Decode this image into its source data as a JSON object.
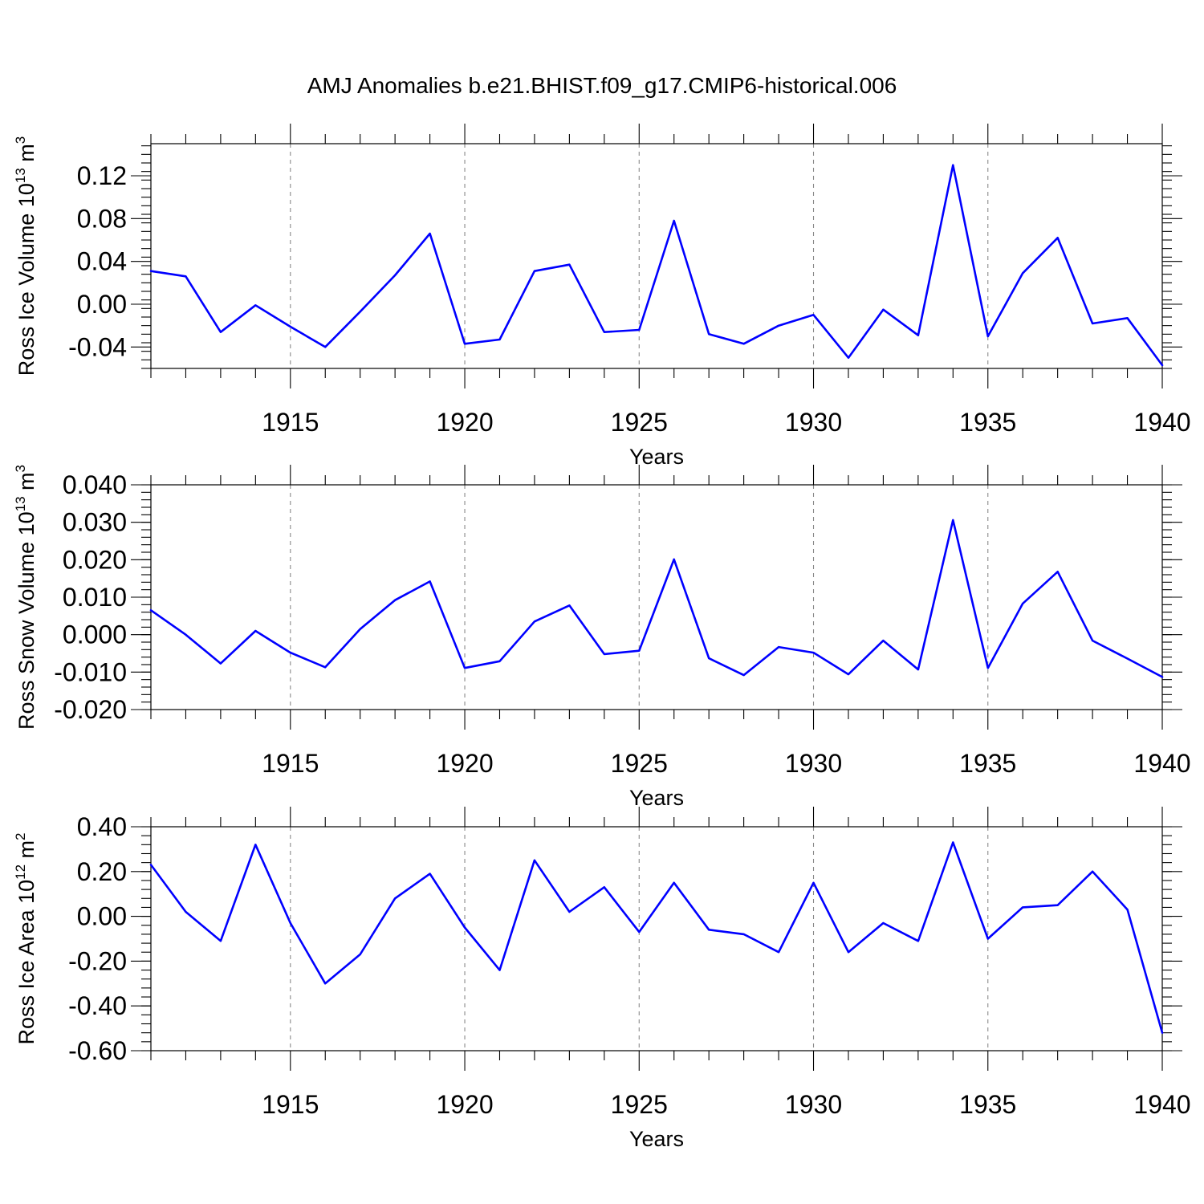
{
  "title": "AMJ Anomalies b.e21.BHIST.f09_g17.CMIP6-historical.006",
  "colors": {
    "line": "#0000ff",
    "grid": "#8a8a8a",
    "axis": "#000000"
  },
  "chart_data": [
    {
      "type": "line",
      "ylabel": {
        "main": "Ross Ice Volume 10",
        "exp": "13",
        "unit": " m",
        "unit_exp": "3"
      },
      "xlabel": "Years",
      "xlim": [
        1911,
        1940
      ],
      "ylim": [
        -0.06,
        0.15
      ],
      "xticks": [
        1915,
        1920,
        1925,
        1930,
        1935,
        1940
      ],
      "xtick_labels": [
        "1915",
        "1920",
        "1925",
        "1930",
        "1935",
        "1940"
      ],
      "yticks": [
        -0.04,
        0.0,
        0.04,
        0.08,
        0.12
      ],
      "ytick_labels": [
        "-0.04",
        "0.00",
        "0.04",
        "0.08",
        "0.12"
      ],
      "y_minor_step": 0.008,
      "grid": "vertical dashed at labeled years",
      "x": [
        1911,
        1912,
        1913,
        1914,
        1915,
        1916,
        1917,
        1918,
        1919,
        1920,
        1921,
        1922,
        1923,
        1924,
        1925,
        1926,
        1927,
        1928,
        1929,
        1930,
        1931,
        1932,
        1933,
        1934,
        1935,
        1936,
        1937,
        1938,
        1939,
        1940
      ],
      "series": [
        {
          "values": [
            0.031,
            0.026,
            -0.026,
            -0.001,
            -0.021,
            -0.04,
            -0.007,
            0.027,
            0.066,
            -0.037,
            -0.033,
            0.031,
            0.037,
            -0.026,
            -0.024,
            0.078,
            -0.028,
            -0.037,
            -0.02,
            -0.01,
            -0.05,
            -0.005,
            -0.029,
            0.13,
            -0.03,
            0.029,
            0.062,
            -0.018,
            -0.013,
            -0.057
          ]
        }
      ]
    },
    {
      "type": "line",
      "ylabel": {
        "main": "Ross Snow Volume 10",
        "exp": "13",
        "unit": " m",
        "unit_exp": "3"
      },
      "xlabel": "Years",
      "xlim": [
        1911,
        1940
      ],
      "ylim": [
        -0.02,
        0.04
      ],
      "xticks": [
        1915,
        1920,
        1925,
        1930,
        1935,
        1940
      ],
      "xtick_labels": [
        "1915",
        "1920",
        "1925",
        "1930",
        "1935",
        "1940"
      ],
      "yticks": [
        -0.02,
        -0.01,
        0.0,
        0.01,
        0.02,
        0.03,
        0.04
      ],
      "ytick_labels": [
        "-0.020",
        "-0.010",
        "0.000",
        "0.010",
        "0.020",
        "0.030",
        "0.040"
      ],
      "y_minor_step": 0.002,
      "grid": "vertical dashed at labeled years",
      "x": [
        1911,
        1912,
        1913,
        1914,
        1915,
        1916,
        1917,
        1918,
        1919,
        1920,
        1921,
        1922,
        1923,
        1924,
        1925,
        1926,
        1927,
        1928,
        1929,
        1930,
        1931,
        1932,
        1933,
        1934,
        1935,
        1936,
        1937,
        1938,
        1939,
        1940
      ],
      "series": [
        {
          "values": [
            0.0065,
            0.0,
            -0.0077,
            0.001,
            -0.0048,
            -0.0087,
            0.0015,
            0.0092,
            0.0142,
            -0.0089,
            -0.0071,
            0.0035,
            0.0078,
            -0.0052,
            -0.0043,
            0.0201,
            -0.0063,
            -0.0108,
            -0.0033,
            -0.0048,
            -0.0106,
            -0.0016,
            -0.0093,
            0.0306,
            -0.0089,
            0.0083,
            0.0168,
            -0.0016,
            -0.0064,
            -0.0113
          ]
        }
      ]
    },
    {
      "type": "line",
      "ylabel": {
        "main": "Ross Ice Area 10",
        "exp": "12",
        "unit": " m",
        "unit_exp": "2"
      },
      "xlabel": "Years",
      "xlim": [
        1911,
        1940
      ],
      "ylim": [
        -0.6,
        0.4
      ],
      "xticks": [
        1915,
        1920,
        1925,
        1930,
        1935,
        1940
      ],
      "xtick_labels": [
        "1915",
        "1920",
        "1925",
        "1930",
        "1935",
        "1940"
      ],
      "yticks": [
        -0.6,
        -0.4,
        -0.2,
        0.0,
        0.2,
        0.4
      ],
      "ytick_labels": [
        "-0.60",
        "-0.40",
        "-0.20",
        "0.00",
        "0.20",
        "0.40"
      ],
      "y_minor_step": 0.04,
      "grid": "vertical dashed at labeled years",
      "x": [
        1911,
        1912,
        1913,
        1914,
        1915,
        1916,
        1917,
        1918,
        1919,
        1920,
        1921,
        1922,
        1923,
        1924,
        1925,
        1926,
        1927,
        1928,
        1929,
        1930,
        1931,
        1932,
        1933,
        1934,
        1935,
        1936,
        1937,
        1938,
        1939,
        1940
      ],
      "series": [
        {
          "values": [
            0.23,
            0.02,
            -0.11,
            0.32,
            -0.03,
            -0.3,
            -0.17,
            0.08,
            0.19,
            -0.05,
            -0.24,
            0.25,
            0.02,
            0.13,
            -0.07,
            0.15,
            -0.06,
            -0.08,
            -0.16,
            0.15,
            -0.16,
            -0.03,
            -0.11,
            0.33,
            -0.1,
            0.04,
            0.05,
            0.2,
            0.03,
            -0.52
          ]
        }
      ]
    }
  ]
}
